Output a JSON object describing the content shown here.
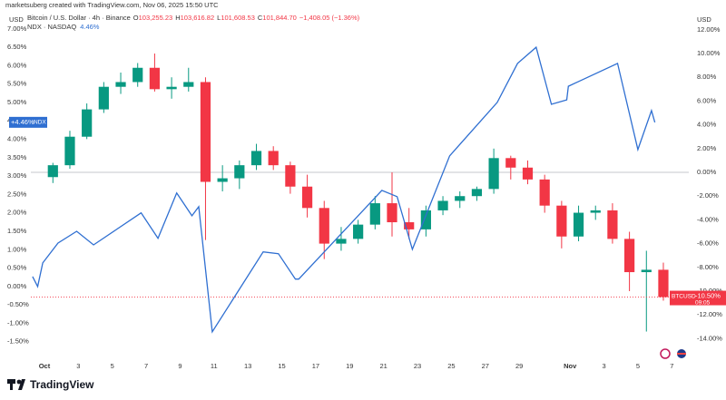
{
  "header": {
    "attribution": "marketsuberg created with TradingView.com, Nov 06, 2025 15:50 UTC",
    "left_unit": "USD",
    "right_unit": "USD",
    "btc_legend": {
      "symbol": "Bitcoin / U.S. Dollar · 4h · Binance",
      "ohlc": [
        {
          "label": "O",
          "value": "103,255.23"
        },
        {
          "label": "H",
          "value": "103,616.82"
        },
        {
          "label": "L",
          "value": "101,608.53"
        },
        {
          "label": "C",
          "value": "101,844.70"
        }
      ],
      "change": "−1,408.05 (−1.36%)"
    },
    "ndx_legend": {
      "symbol": "NDX · NASDAQ",
      "value": "4.46%"
    }
  },
  "chart_data": {
    "type": "candlestick",
    "x": [
      0,
      1,
      2,
      3,
      4,
      5,
      6,
      7,
      8,
      9,
      10,
      11,
      12,
      13,
      14,
      15,
      16,
      17,
      18,
      19,
      20,
      21,
      22,
      23,
      24,
      25,
      26,
      27,
      28,
      29,
      30,
      31,
      32,
      33,
      34,
      35,
      36
    ],
    "series": [
      {
        "name": "BTCUSD",
        "type": "candlestick",
        "axis": "y2",
        "up_color": "#089981",
        "down_color": "#f23645",
        "open": [
          -0.4,
          0.6,
          3.0,
          5.3,
          7.2,
          7.6,
          8.8,
          7.0,
          7.2,
          7.6,
          -0.8,
          -0.5,
          0.6,
          1.8,
          0.6,
          -1.2,
          -3.0,
          -6.0,
          -5.6,
          -4.4,
          -2.6,
          -4.2,
          -4.8,
          -3.2,
          -2.4,
          -2.0,
          -1.4,
          1.2,
          0.4,
          -0.6,
          -2.8,
          -5.4,
          -3.4,
          -3.2,
          -5.6,
          -8.4,
          -8.2
        ],
        "high": [
          0.8,
          3.5,
          5.8,
          7.6,
          8.4,
          9.2,
          10.0,
          8.0,
          8.8,
          8.0,
          0.6,
          1.0,
          2.4,
          2.2,
          0.9,
          -0.2,
          -2.4,
          -4.6,
          -4.0,
          -2.0,
          0,
          -3.0,
          -2.8,
          -2.0,
          -1.6,
          -1.2,
          2.0,
          1.4,
          1.0,
          -0.2,
          -2.4,
          -2.8,
          -2.8,
          -2.6,
          -5.0,
          -6.6,
          -7.6
        ],
        "low": [
          -0.9,
          0.3,
          2.8,
          5.0,
          6.6,
          7.2,
          6.8,
          6.2,
          6.8,
          -5.7,
          -1.6,
          -1.4,
          0.2,
          0.2,
          -1.8,
          -3.8,
          -7.3,
          -6.6,
          -6.0,
          -4.8,
          -5.4,
          -5.6,
          -5.4,
          -3.6,
          -3.0,
          -2.4,
          -1.8,
          -0.6,
          -1.0,
          -3.4,
          -6.4,
          -5.8,
          -4.0,
          -6.0,
          -10.0,
          -13.4,
          -10.8
        ],
        "close": [
          0.6,
          3.0,
          5.3,
          7.2,
          7.6,
          8.8,
          7.0,
          7.2,
          7.6,
          -0.8,
          -0.5,
          0.6,
          1.8,
          0.6,
          -1.2,
          -3.0,
          -6.0,
          -5.6,
          -4.4,
          -2.6,
          -4.2,
          -4.8,
          -3.2,
          -2.4,
          -2.0,
          -1.4,
          1.2,
          0.4,
          -0.6,
          -2.8,
          -5.4,
          -3.4,
          -3.2,
          -5.6,
          -8.4,
          -8.2,
          -10.5
        ],
        "last_label": {
          "value": -10.5,
          "label": "-10.50%"
        },
        "countdown": "09:05"
      },
      {
        "name": "NDX",
        "type": "line",
        "color": "#2f6fd1",
        "x": [
          -0.7,
          -0.4,
          -0.1,
          0.8,
          1.9,
          2.9,
          5.7,
          6.7,
          7.8,
          8.7,
          9.1,
          9.9,
          12.9,
          13.8,
          14.8,
          15.0,
          19.9,
          20.8,
          21.7,
          23.9,
          26.7,
          27.9,
          29.0,
          29.9,
          30.8,
          30.9,
          33.8,
          35.0,
          35.8,
          36.0
        ],
        "values": [
          0.27,
          0,
          0.64,
          1.18,
          1.5,
          1.13,
          2.0,
          1.31,
          2.54,
          1.92,
          2.17,
          -1.23,
          0.94,
          0.89,
          0.2,
          0.2,
          2.61,
          2.44,
          1.01,
          3.55,
          5.0,
          6.06,
          6.5,
          4.95,
          5.07,
          5.44,
          6.06,
          3.72,
          4.78,
          4.46
        ],
        "last_label": {
          "value": 4.46,
          "label": "+4.46%"
        }
      }
    ],
    "xlim": [
      -0.8,
      38
    ],
    "xticks": [
      {
        "value": 0,
        "label": "Oct"
      },
      {
        "value": 2,
        "label": "3"
      },
      {
        "value": 4,
        "label": "5"
      },
      {
        "value": 6,
        "label": "7"
      },
      {
        "value": 8,
        "label": "9"
      },
      {
        "value": 10,
        "label": "11"
      },
      {
        "value": 12,
        "label": "13"
      },
      {
        "value": 14,
        "label": "15"
      },
      {
        "value": 16,
        "label": "17"
      },
      {
        "value": 18,
        "label": "19"
      },
      {
        "value": 20,
        "label": "21"
      },
      {
        "value": 22,
        "label": "23"
      },
      {
        "value": 24,
        "label": "25"
      },
      {
        "value": 26,
        "label": "27"
      },
      {
        "value": 28,
        "label": "29"
      },
      {
        "value": 31,
        "label": "Nov"
      },
      {
        "value": 33,
        "label": "3"
      },
      {
        "value": 35,
        "label": "5"
      },
      {
        "value": 37,
        "label": "7"
      }
    ],
    "ylim": [
      -1.95,
      7.29
    ],
    "yticks": [
      {
        "value": 7,
        "label": "7.00%"
      },
      {
        "value": 6.5,
        "label": "6.50%"
      },
      {
        "value": 6,
        "label": "6.00%"
      },
      {
        "value": 5.5,
        "label": "5.50%"
      },
      {
        "value": 5,
        "label": "5.00%"
      },
      {
        "value": 4.5,
        "label": "4.50%"
      },
      {
        "value": 4,
        "label": "4.00%"
      },
      {
        "value": 3.5,
        "label": "3.50%"
      },
      {
        "value": 3,
        "label": "3.00%"
      },
      {
        "value": 2.5,
        "label": "2.50%"
      },
      {
        "value": 2,
        "label": "2.00%"
      },
      {
        "value": 1.5,
        "label": "1.50%"
      },
      {
        "value": 1,
        "label": "1.00%"
      },
      {
        "value": 0.5,
        "label": "0.50%"
      },
      {
        "value": 0,
        "label": "0.00%"
      },
      {
        "value": -0.5,
        "label": "-0.50%"
      },
      {
        "value": -1,
        "label": "-1.00%"
      },
      {
        "value": -1.5,
        "label": "-1.50%"
      }
    ],
    "y2lim": [
      -15.65,
      12.98
    ],
    "y2ticks": [
      {
        "value": 12,
        "label": "12.00%"
      },
      {
        "value": 10,
        "label": "10.00%"
      },
      {
        "value": 8,
        "label": "8.00%"
      },
      {
        "value": 6,
        "label": "6.00%"
      },
      {
        "value": 4,
        "label": "4.00%"
      },
      {
        "value": 2,
        "label": "2.00%"
      },
      {
        "value": 0,
        "label": "0.00%"
      },
      {
        "value": -2,
        "label": "-2.00%"
      },
      {
        "value": -4,
        "label": "-4.00%"
      },
      {
        "value": -6,
        "label": "-6.00%"
      },
      {
        "value": -8,
        "label": "-8.00%"
      },
      {
        "value": -10,
        "label": "-10.00%"
      },
      {
        "value": -12,
        "label": "-12.00%"
      },
      {
        "value": -14,
        "label": "-14.00%"
      }
    ]
  },
  "footer": {
    "brand": "TradingView"
  }
}
